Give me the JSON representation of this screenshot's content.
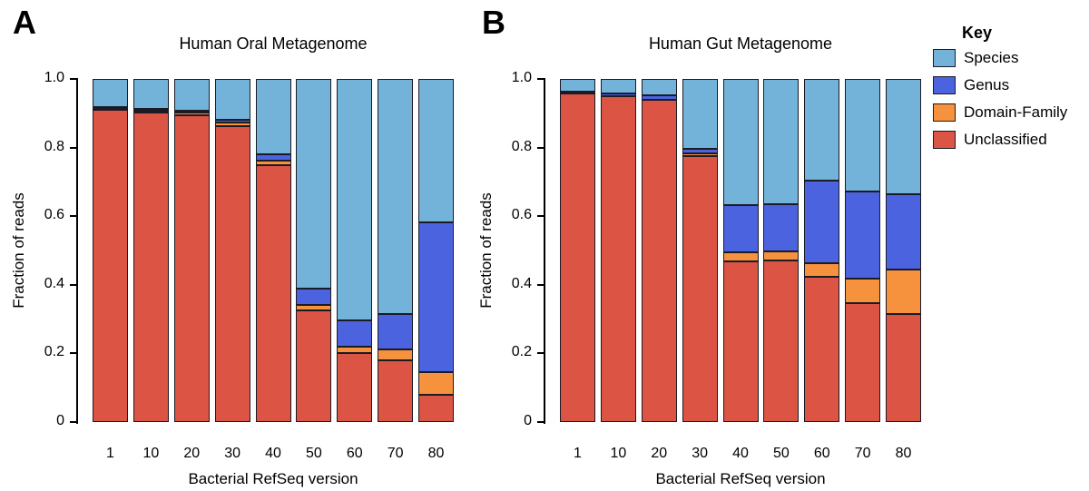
{
  "legend": {
    "title": "Key",
    "entries": [
      {
        "label": "Species",
        "color": "#74B3D9"
      },
      {
        "label": "Genus",
        "color": "#4C63E0"
      },
      {
        "label": "Domain-Family",
        "color": "#F6913E"
      },
      {
        "label": "Unclassified",
        "color": "#DB5444"
      }
    ]
  },
  "chart_data": [
    {
      "type": "bar",
      "stacked": true,
      "panel_letter": "A",
      "title": "Human Oral Metagenome",
      "xlabel": "Bacterial RefSeq version",
      "ylabel": "Fraction of reads",
      "categories": [
        "1",
        "10",
        "20",
        "30",
        "40",
        "50",
        "60",
        "70",
        "80"
      ],
      "ylim": [
        0,
        1.0
      ],
      "yticks": [
        "1.0",
        "0.8",
        "0.6",
        "0.4",
        "0.2",
        "0"
      ],
      "grid": false,
      "segment_border_color": "#1b1b26",
      "series": [
        {
          "name": "Species",
          "color": "#74B3D9",
          "values": [
            0.081,
            0.088,
            0.093,
            0.118,
            0.22,
            0.611,
            0.704,
            0.684,
            0.418
          ]
        },
        {
          "name": "Genus",
          "color": "#4C63E0",
          "values": [
            0.004,
            0.004,
            0.005,
            0.008,
            0.018,
            0.048,
            0.076,
            0.104,
            0.437
          ]
        },
        {
          "name": "Domain-Family",
          "color": "#F6913E",
          "values": [
            0.005,
            0.006,
            0.009,
            0.012,
            0.014,
            0.016,
            0.02,
            0.031,
            0.065
          ]
        },
        {
          "name": "Unclassified",
          "color": "#DB5444",
          "values": [
            0.91,
            0.902,
            0.893,
            0.862,
            0.748,
            0.325,
            0.2,
            0.181,
            0.08
          ]
        }
      ]
    },
    {
      "type": "bar",
      "stacked": true,
      "panel_letter": "B",
      "title": "Human Gut Metagenome",
      "xlabel": "Bacterial RefSeq version",
      "ylabel": "Fraction of reads",
      "categories": [
        "1",
        "10",
        "20",
        "30",
        "40",
        "50",
        "60",
        "70",
        "80"
      ],
      "ylim": [
        0,
        1.0
      ],
      "yticks": [
        "1.0",
        "0.8",
        "0.6",
        "0.4",
        "0.2",
        "0"
      ],
      "grid": false,
      "segment_border_color": "#1b1b26",
      "series": [
        {
          "name": "Species",
          "color": "#74B3D9",
          "values": [
            0.037,
            0.043,
            0.048,
            0.204,
            0.368,
            0.365,
            0.297,
            0.328,
            0.335
          ]
        },
        {
          "name": "Genus",
          "color": "#4C63E0",
          "values": [
            0.004,
            0.006,
            0.012,
            0.014,
            0.137,
            0.138,
            0.24,
            0.253,
            0.22
          ]
        },
        {
          "name": "Domain-Family",
          "color": "#F6913E",
          "values": [
            0.002,
            0.002,
            0.002,
            0.006,
            0.028,
            0.027,
            0.04,
            0.072,
            0.13
          ]
        },
        {
          "name": "Unclassified",
          "color": "#DB5444",
          "values": [
            0.957,
            0.949,
            0.938,
            0.776,
            0.467,
            0.47,
            0.423,
            0.347,
            0.315
          ]
        }
      ]
    }
  ]
}
